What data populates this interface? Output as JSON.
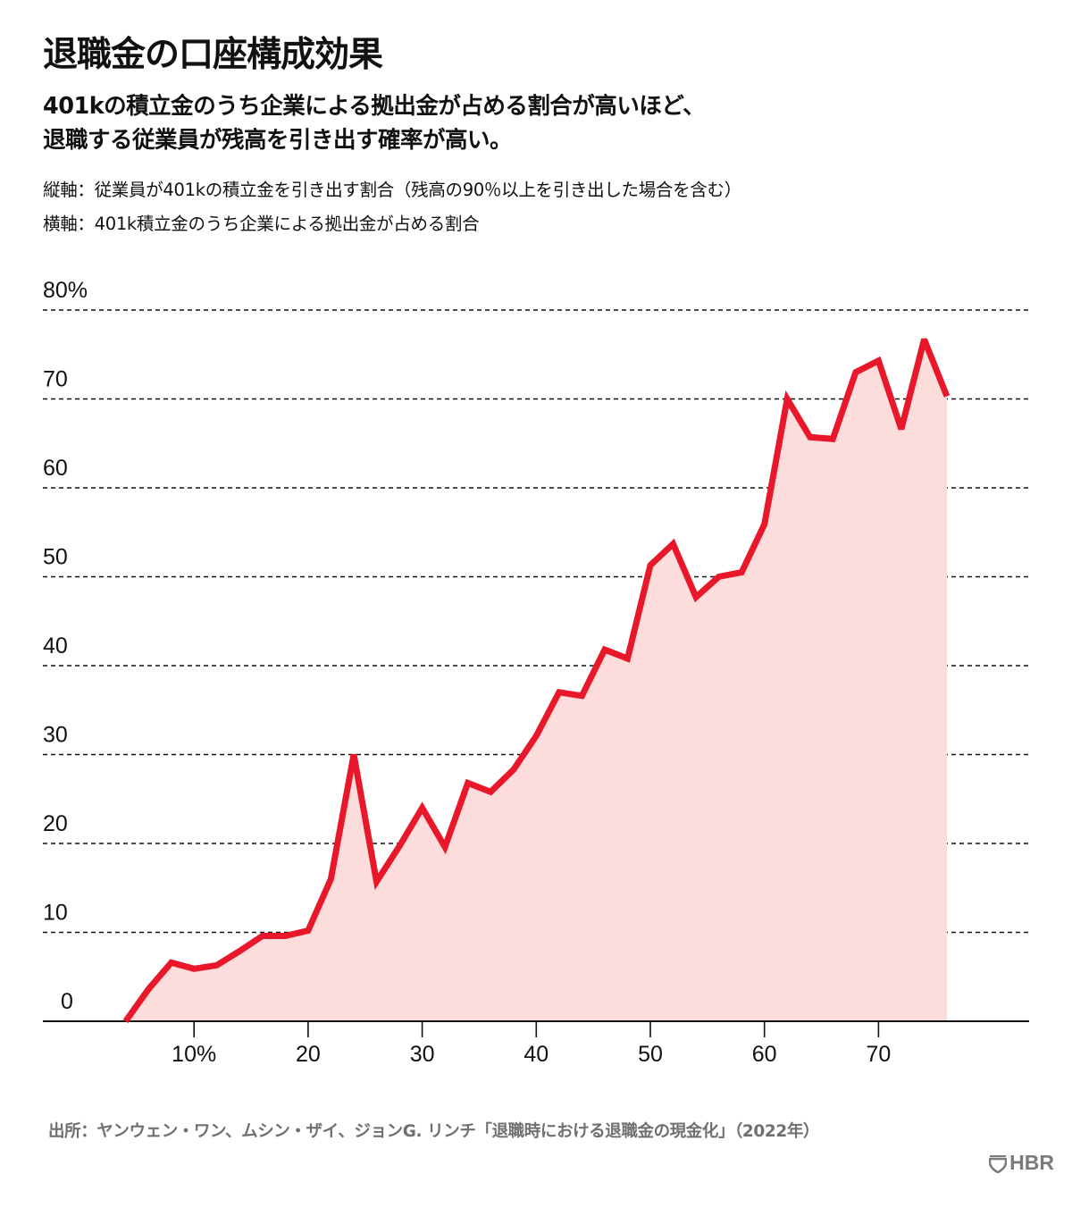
{
  "header": {
    "title": "退職金の口座構成効果",
    "subtitle_lines": [
      "401kの積立金のうち企業による拠出金が占める割合が高いほど、",
      "退職する従業員が残高を引き出す確率が高い。"
    ],
    "vertical_axis_note": "縦軸：従業員が401kの積立金を引き出す割合（残高の90％以上を引き出した場合を含む）",
    "horizontal_axis_note": "横軸：401k積立金のうち企業による拠出金が占める割合"
  },
  "chart_data": {
    "type": "area",
    "title": "退職金の口座構成効果",
    "xlabel": "401k積立金のうち企業による拠出金が占める割合",
    "ylabel": "従業員が401kの積立金を引き出す割合（残高の90％以上を引き出した場合を含む）",
    "x": [
      4,
      6,
      8,
      10,
      12,
      14,
      16,
      18,
      20,
      22,
      24,
      26,
      28,
      30,
      32,
      34,
      36,
      38,
      40,
      42,
      44,
      46,
      48,
      50,
      52,
      54,
      56,
      58,
      60,
      62,
      64,
      66,
      68,
      70,
      72,
      74,
      76
    ],
    "series": [
      {
        "name": "引き出し割合",
        "values": [
          0,
          3.6,
          6.6,
          5.9,
          6.3,
          7.9,
          9.6,
          9.6,
          10.2,
          16.0,
          30.0,
          15.7,
          19.7,
          24.0,
          19.6,
          26.8,
          25.8,
          28.3,
          32.1,
          37.0,
          36.6,
          41.8,
          40.8,
          51.3,
          53.7,
          47.7,
          50.0,
          50.5,
          55.9,
          70.0,
          65.7,
          65.5,
          73.0,
          74.3,
          66.6,
          76.7,
          70.3
        ]
      }
    ],
    "xlim": [
      0,
      85
    ],
    "ylim": [
      0,
      80
    ],
    "x_ticks": [
      10,
      20,
      30,
      40,
      50,
      60,
      70
    ],
    "x_tick_labels": [
      "10%",
      "20",
      "30",
      "40",
      "50",
      "60",
      "70"
    ],
    "y_ticks": [
      0,
      10,
      20,
      30,
      40,
      50,
      60,
      70,
      80
    ],
    "y_tick_labels": [
      "0",
      "10",
      "20",
      "30",
      "40",
      "50",
      "60",
      "70",
      "80%"
    ],
    "grid": true,
    "legend": "none",
    "colors": {
      "line": "#E8172A",
      "fill": "#FDDCDC",
      "grid": "#111111",
      "axis": "#111111"
    }
  },
  "footer": {
    "source": "出所：ヤンウェン・ワン、ムシン・ザイ、ジョンG. リンチ「退職時における退職金の現金化」（2022年）",
    "logo_text": "HBR",
    "logo_icon": "hbr-shield-icon"
  }
}
